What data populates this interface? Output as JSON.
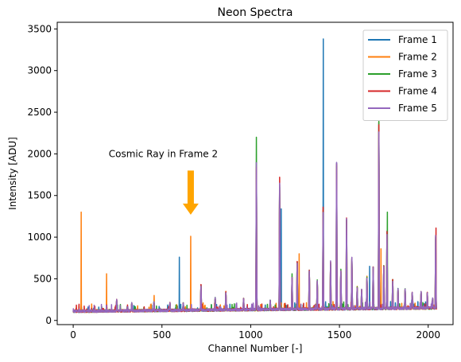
{
  "chart_data": {
    "type": "line",
    "title": "Neon Spectra",
    "xlabel": "Channel Number [-]",
    "ylabel": "Intensity [ADU]",
    "xlim": [
      -90,
      2140
    ],
    "ylim": [
      -50,
      3580
    ],
    "xticks": [
      0,
      500,
      1000,
      1500,
      2000
    ],
    "yticks": [
      0,
      500,
      1000,
      1500,
      2000,
      2500,
      3000,
      3500
    ],
    "grid": false,
    "legend_position": "top-right",
    "baseline": {
      "channel_range": [
        0,
        2047
      ],
      "level_start": 110,
      "level_end": 150,
      "noise": 30
    },
    "shared_peaks": [
      {
        "x": 245,
        "y": 250
      },
      {
        "x": 330,
        "y": 210
      },
      {
        "x": 455,
        "y": 220
      },
      {
        "x": 545,
        "y": 210
      },
      {
        "x": 620,
        "y": 215
      },
      {
        "x": 720,
        "y": 420
      },
      {
        "x": 800,
        "y": 270
      },
      {
        "x": 860,
        "y": 340
      },
      {
        "x": 960,
        "y": 260
      },
      {
        "x": 1032,
        "y": 1860
      },
      {
        "x": 1110,
        "y": 240
      },
      {
        "x": 1163,
        "y": 1600
      },
      {
        "x": 1233,
        "y": 520
      },
      {
        "x": 1262,
        "y": 700
      },
      {
        "x": 1330,
        "y": 600
      },
      {
        "x": 1375,
        "y": 480
      },
      {
        "x": 1408,
        "y": 1300
      },
      {
        "x": 1450,
        "y": 700
      },
      {
        "x": 1484,
        "y": 1860
      },
      {
        "x": 1508,
        "y": 600
      },
      {
        "x": 1540,
        "y": 1220
      },
      {
        "x": 1570,
        "y": 740
      },
      {
        "x": 1600,
        "y": 400
      },
      {
        "x": 1625,
        "y": 370
      },
      {
        "x": 1655,
        "y": 520
      },
      {
        "x": 1690,
        "y": 640
      },
      {
        "x": 1722,
        "y": 2330
      },
      {
        "x": 1750,
        "y": 640
      },
      {
        "x": 1768,
        "y": 1050
      },
      {
        "x": 1800,
        "y": 480
      },
      {
        "x": 1830,
        "y": 380
      },
      {
        "x": 1870,
        "y": 380
      },
      {
        "x": 1910,
        "y": 330
      },
      {
        "x": 1960,
        "y": 340
      },
      {
        "x": 1995,
        "y": 330
      },
      {
        "x": 2025,
        "y": 270
      },
      {
        "x": 2042,
        "y": 1000
      }
    ],
    "series": [
      {
        "name": "Frame 1",
        "color": "#1f77b4",
        "offset": 0,
        "spikes": [
          {
            "x": 1409,
            "y": 3380
          },
          {
            "x": 1172,
            "y": 1340
          },
          {
            "x": 598,
            "y": 760
          },
          {
            "x": 1670,
            "y": 650
          }
        ]
      },
      {
        "name": "Frame 2",
        "color": "#ff7f0e",
        "offset": 40,
        "spikes": [
          {
            "x": 45,
            "y": 1300
          },
          {
            "x": 188,
            "y": 560
          },
          {
            "x": 662,
            "y": 1010
          },
          {
            "x": 1273,
            "y": 800
          },
          {
            "x": 1734,
            "y": 860
          },
          {
            "x": 456,
            "y": 300
          }
        ]
      },
      {
        "name": "Frame 3",
        "color": "#2ca02c",
        "offset": 80,
        "spikes": [
          {
            "x": 1032,
            "y": 2200
          },
          {
            "x": 1770,
            "y": 1300
          },
          {
            "x": 1722,
            "y": 2390
          },
          {
            "x": 1233,
            "y": 560
          }
        ]
      },
      {
        "name": "Frame 4",
        "color": "#d62728",
        "offset": 120,
        "spikes": [
          {
            "x": 1163,
            "y": 1720
          },
          {
            "x": 2044,
            "y": 1110
          },
          {
            "x": 1408,
            "y": 1360
          },
          {
            "x": 1484,
            "y": 1880
          }
        ]
      },
      {
        "name": "Frame 5",
        "color": "#9467bd",
        "offset": 160,
        "spikes": []
      }
    ],
    "annotations": [
      {
        "text": "Cosmic Ray in Frame 2",
        "text_x": 200,
        "text_y": 2000,
        "arrow_tail": [
          662,
          1800
        ],
        "arrow_head": [
          662,
          1270
        ],
        "color": "#ffa500"
      }
    ]
  }
}
